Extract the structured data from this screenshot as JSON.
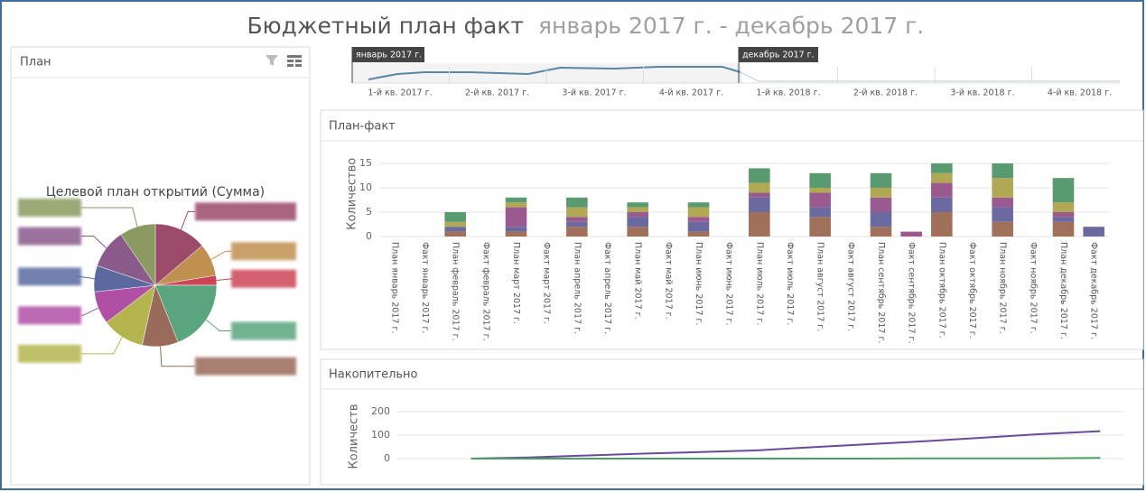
{
  "title": "Бюджетный план факт",
  "period": "январь 2017 г. - декабрь 2017 г.",
  "range_selector": {
    "start_label": "январь 2017 г.",
    "end_label": "декабрь 2017 г.",
    "quarters": [
      "1-й кв. 2017 г.",
      "2-й кв. 2017 г.",
      "3-й кв. 2017 г.",
      "4-й кв. 2017 г.",
      "1-й кв. 2018 г.",
      "2-й кв. 2018 г.",
      "3-й кв. 2018 г.",
      "4-й кв. 2018 г."
    ]
  },
  "panels": {
    "pie": "План",
    "bar": "План-факт",
    "line": "Накопительно"
  },
  "chart_data": [
    {
      "type": "pie",
      "title": "Целевой план открытий (Сумма)",
      "values": [
        16,
        10,
        3,
        22,
        11,
        13,
        10,
        8,
        12,
        11
      ],
      "colors": [
        "#9b4a6a",
        "#c09050",
        "#cc4455",
        "#5aa57e",
        "#9a6a5a",
        "#b5b550",
        "#b050a5",
        "#5a6aa0",
        "#8a5a8a",
        "#8a9a60"
      ]
    },
    {
      "type": "bar",
      "stacked": true,
      "ylabel": "Количество",
      "categories": [
        "План январь 2017 г.",
        "Факт январь 2017 г.",
        "План февраль 2017 г.",
        "Факт февраль 2017 г.",
        "План март 2017 г.",
        "Факт март 2017 г.",
        "План апрель 2017 г.",
        "Факт апрель 2017 г.",
        "План май 2017 г.",
        "Факт май 2017 г.",
        "План июнь 2017 г.",
        "Факт июнь 2017 г.",
        "План июль 2017 г.",
        "Факт июль 2017 г.",
        "План август 2017 г.",
        "Факт август 2017 г.",
        "План сентябрь 2017 г.",
        "Факт сентябрь 2017 г.",
        "План октябрь 2017 г.",
        "Факт октябрь 2017 г.",
        "План ноябрь 2017 г.",
        "Факт ноябрь 2017 г.",
        "План декабрь 2017 г.",
        "Факт декабрь 2017 г."
      ],
      "series": [
        {
          "color": "#a0705a",
          "values": [
            0,
            0,
            1,
            0,
            1,
            0,
            2,
            0,
            2,
            0,
            1,
            0,
            5,
            0,
            4,
            0,
            2,
            0,
            5,
            0,
            3,
            0,
            3,
            0
          ]
        },
        {
          "color": "#6a6aa0",
          "values": [
            0,
            0,
            1,
            0,
            1,
            0,
            1,
            0,
            2,
            0,
            2,
            0,
            3,
            0,
            2,
            0,
            3,
            0,
            3,
            0,
            3,
            0,
            1,
            2
          ]
        },
        {
          "color": "#9a5a90",
          "values": [
            0,
            0,
            0,
            0,
            4,
            0,
            1,
            0,
            1,
            0,
            1,
            0,
            1,
            0,
            3,
            0,
            3,
            1,
            3,
            0,
            2,
            0,
            1,
            0
          ]
        },
        {
          "color": "#b0a855",
          "values": [
            0,
            0,
            1,
            0,
            1,
            0,
            2,
            0,
            1,
            0,
            2,
            0,
            2,
            0,
            1,
            0,
            2,
            0,
            2,
            0,
            4,
            0,
            2,
            0
          ]
        },
        {
          "color": "#5a9a70",
          "values": [
            0,
            0,
            2,
            0,
            1,
            0,
            2,
            0,
            1,
            0,
            1,
            0,
            3,
            0,
            3,
            0,
            3,
            0,
            2,
            0,
            3,
            0,
            5,
            0
          ]
        }
      ],
      "ylim": [
        0,
        17.5
      ],
      "yticks": [
        0,
        5,
        10,
        15
      ],
      "grid": true
    },
    {
      "type": "line",
      "ylabel": "Количеств",
      "series": [
        {
          "color": "#6a4aa0",
          "values": [
            0,
            5,
            13,
            21,
            28,
            35,
            49,
            62,
            75,
            90,
            105,
            117
          ]
        },
        {
          "color": "#4aa060",
          "values": [
            0,
            0,
            0,
            0,
            0,
            0,
            0,
            0,
            1,
            1,
            1,
            3
          ]
        }
      ],
      "ylim": [
        0,
        250
      ],
      "yticks": [
        0,
        100,
        200
      ],
      "grid": true
    }
  ]
}
